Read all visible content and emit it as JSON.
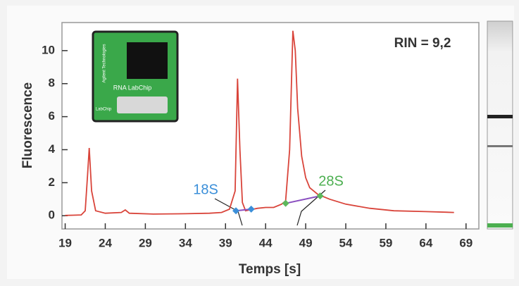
{
  "chart_data": {
    "type": "line",
    "x_label": "Temps [s]",
    "y_label": "Fluorescence",
    "xlim": [
      18.6,
      70.6
    ],
    "ylim": [
      -0.8,
      11.7
    ],
    "xticks": [
      19,
      24,
      29,
      34,
      39,
      44,
      49,
      54,
      59,
      64,
      69
    ],
    "yticks": [
      0,
      2,
      4,
      6,
      8,
      10
    ],
    "grid": false,
    "x": [
      19,
      20,
      21,
      21.5,
      21.8,
      22.0,
      22.3,
      22.8,
      24,
      26,
      26.5,
      27,
      30,
      34,
      37,
      38.5,
      39.5,
      40.2,
      40.5,
      40.8,
      41.1,
      41.5,
      42,
      43,
      44,
      45,
      46,
      46.5,
      47,
      47.4,
      47.7,
      48,
      48.5,
      49,
      49.5,
      50.5,
      52,
      54,
      57,
      60,
      64,
      67.5
    ],
    "series": [
      {
        "color": "#d9443a",
        "values": [
          0.02,
          0.03,
          0.05,
          0.3,
          2.5,
          4.1,
          1.5,
          0.3,
          0.15,
          0.2,
          0.35,
          0.15,
          0.1,
          0.12,
          0.15,
          0.2,
          0.4,
          1.5,
          8.3,
          4,
          0.8,
          0.3,
          0.35,
          0.45,
          0.5,
          0.5,
          0.7,
          0.9,
          4,
          11.2,
          10,
          6.5,
          3.6,
          2.3,
          1.7,
          1.3,
          1.0,
          0.7,
          0.45,
          0.3,
          0.25,
          0.2
        ]
      }
    ],
    "markers": [
      {
        "color": "#3b8fd9",
        "x": [
          40.3,
          42.2
        ],
        "values": [
          0.3,
          0.4
        ]
      },
      {
        "color": "#5cb85c",
        "x": [
          46.5,
          50.8
        ],
        "values": [
          0.75,
          1.2
        ]
      }
    ],
    "connector_color": "#8a4fc0",
    "annotations": [
      "RIN = 9,2",
      "18S",
      "28S"
    ],
    "inset_labels": [
      "Agilent Technologies",
      "RNA LabChip",
      "LabChip"
    ]
  }
}
